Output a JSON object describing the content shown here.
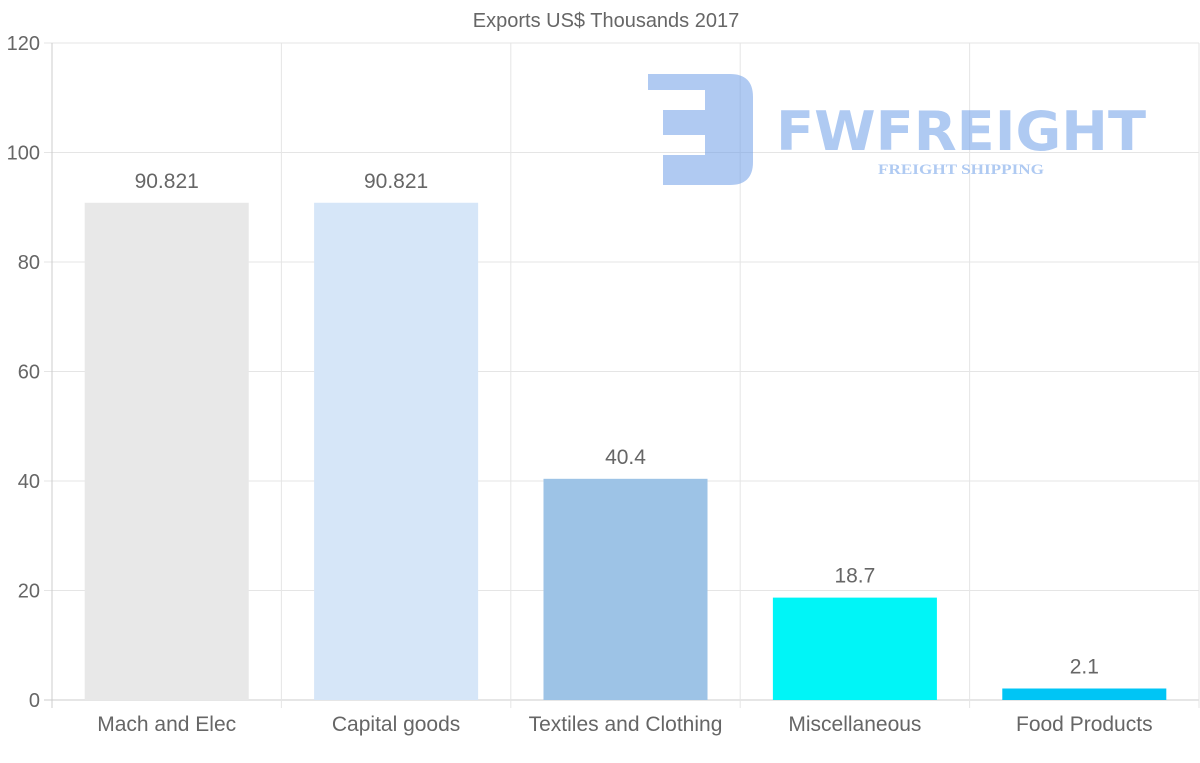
{
  "watermark": {
    "brand": "FWFREIGHT",
    "tagline": "FREIGHT SHIPPING"
  },
  "chart_data": {
    "type": "bar",
    "title": "Exports US$ Thousands 2017",
    "xlabel": "",
    "ylabel": "",
    "categories": [
      "Mach and Elec",
      "Capital goods",
      "Textiles and Clothing",
      "Miscellaneous",
      "Food Products"
    ],
    "values": [
      90.821,
      90.821,
      40.4,
      18.7,
      2.1
    ],
    "data_labels": [
      "90.821",
      "90.821",
      "40.4",
      "18.7",
      "2.1"
    ],
    "colors": [
      "#e8e8e8",
      "#d6e6f8",
      "#9dc3e6",
      "#00f5f7",
      "#00c5f5"
    ],
    "ylim": [
      0,
      120
    ],
    "yticks": [
      0,
      20,
      40,
      60,
      80,
      100,
      120
    ],
    "grid": true,
    "legend": "none"
  }
}
